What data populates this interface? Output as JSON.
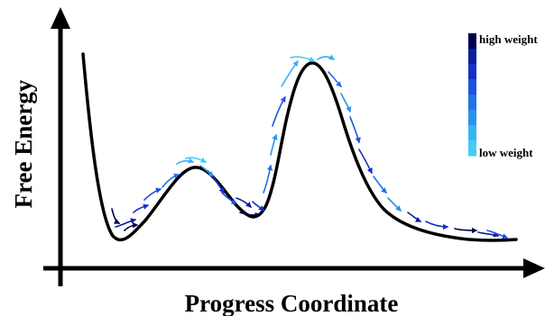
{
  "axes": {
    "x_label": "Progress Coordinate",
    "y_label": "Free Energy"
  },
  "legend": {
    "high_label": "high weight",
    "low_label": "low weight",
    "colors": [
      "#00004d",
      "#0a1fa0",
      "#1433c6",
      "#1c52dc",
      "#2272e8",
      "#2a92ee",
      "#37b4f3",
      "#45ccf8"
    ]
  },
  "colors": {
    "curve": "#000000",
    "axis": "#000000"
  }
}
